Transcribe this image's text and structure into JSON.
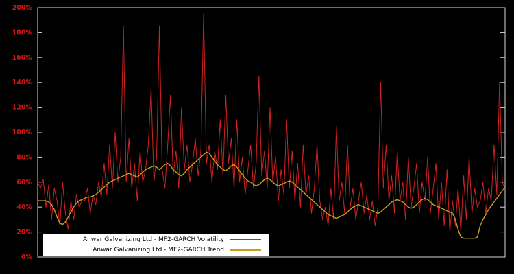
{
  "chart": {
    "background": "#000000",
    "border_color": "#d9d9d9",
    "tick_color": "#d41414"
  },
  "chart_data": {
    "type": "line",
    "title": "",
    "xlabel": "",
    "ylabel": "",
    "x_axis": "index (no visible x tick labels)",
    "ylim": [
      0,
      200
    ],
    "ytick_labels": [
      "0%",
      "20%",
      "40%",
      "60%",
      "80%",
      "100%",
      "120%",
      "140%",
      "160%",
      "180%",
      "200%"
    ],
    "grid": false,
    "legend_position": "bottom-left, white box overlay",
    "series": [
      {
        "name": "Anwar Galvanizing Ltd - MF2-GARCH Volatility",
        "color": "#d22222",
        "values": [
          60,
          55,
          62,
          40,
          58,
          30,
          55,
          45,
          25,
          60,
          35,
          22,
          45,
          30,
          50,
          40,
          45,
          45,
          55,
          35,
          50,
          42,
          60,
          48,
          75,
          50,
          90,
          55,
          100,
          60,
          80,
          185,
          60,
          95,
          55,
          75,
          45,
          85,
          60,
          70,
          90,
          135,
          60,
          80,
          185,
          70,
          55,
          90,
          130,
          65,
          85,
          55,
          120,
          70,
          90,
          60,
          75,
          95,
          65,
          85,
          195,
          75,
          90,
          60,
          85,
          70,
          110,
          65,
          130,
          75,
          95,
          55,
          110,
          60,
          80,
          50,
          70,
          90,
          55,
          75,
          145,
          65,
          85,
          55,
          120,
          60,
          80,
          45,
          70,
          50,
          110,
          55,
          85,
          45,
          75,
          40,
          90,
          50,
          65,
          35,
          55,
          90,
          45,
          30,
          40,
          25,
          55,
          30,
          105,
          45,
          60,
          35,
          90,
          40,
          55,
          30,
          45,
          60,
          35,
          50,
          30,
          45,
          25,
          40,
          140,
          55,
          90,
          45,
          65,
          35,
          85,
          45,
          60,
          30,
          80,
          40,
          55,
          75,
          35,
          60,
          45,
          80,
          35,
          55,
          75,
          30,
          60,
          25,
          70,
          20,
          45,
          25,
          55,
          20,
          65,
          30,
          80,
          35,
          55,
          40,
          45,
          60,
          35,
          55,
          45,
          90,
          50,
          140,
          60,
          55
        ]
      },
      {
        "name": "Anwar Galvanizing Ltd - MF2-GARCH Trend",
        "color": "#c8a01e",
        "values": [
          45,
          45,
          45,
          45,
          44,
          42,
          38,
          32,
          27,
          26,
          28,
          32,
          36,
          40,
          43,
          45,
          46,
          47,
          48,
          48,
          49,
          50,
          52,
          54,
          56,
          58,
          60,
          61,
          62,
          63,
          64,
          65,
          66,
          67,
          66,
          65,
          64,
          66,
          68,
          70,
          71,
          72,
          73,
          72,
          70,
          72,
          74,
          75,
          73,
          70,
          68,
          66,
          65,
          67,
          70,
          72,
          74,
          76,
          78,
          80,
          82,
          84,
          83,
          80,
          77,
          74,
          72,
          70,
          69,
          71,
          73,
          74,
          72,
          69,
          66,
          63,
          61,
          60,
          58,
          57,
          58,
          60,
          62,
          63,
          62,
          60,
          58,
          57,
          58,
          59,
          60,
          61,
          60,
          58,
          56,
          54,
          52,
          50,
          48,
          46,
          44,
          42,
          40,
          38,
          36,
          34,
          33,
          32,
          31,
          32,
          33,
          34,
          36,
          38,
          40,
          41,
          42,
          41,
          40,
          39,
          38,
          37,
          36,
          35,
          36,
          38,
          40,
          42,
          44,
          45,
          46,
          45,
          44,
          42,
          40,
          39,
          40,
          42,
          44,
          46,
          47,
          46,
          44,
          42,
          41,
          40,
          39,
          38,
          37,
          36,
          35,
          30,
          22,
          16,
          15,
          15,
          15,
          15,
          15,
          16,
          25,
          30,
          34,
          38,
          41,
          44,
          47,
          50,
          53,
          56
        ]
      }
    ]
  },
  "legend": {
    "items": [
      {
        "label": "Anwar Galvanizing Ltd - MF2-GARCH Volatility"
      },
      {
        "label": "Anwar Galvanizing Ltd - MF2-GARCH Trend"
      }
    ]
  }
}
